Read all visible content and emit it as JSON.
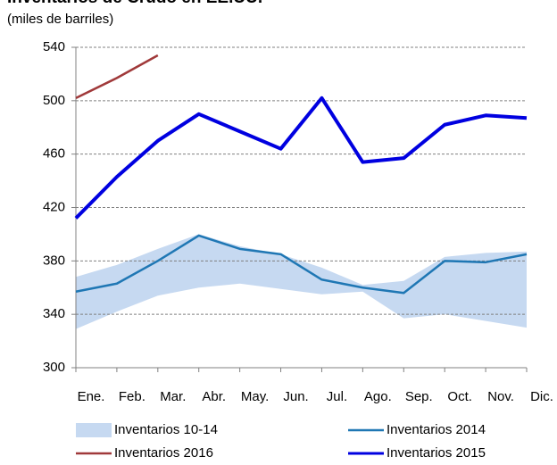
{
  "chart_data": {
    "type": "line",
    "title": "Inventarios de Crudo en EE.UU.",
    "subtitle": "(miles de barriles)",
    "categories": [
      "Ene.",
      "Feb.",
      "Mar.",
      "Abr.",
      "May.",
      "Jun.",
      "Jul.",
      "Ago.",
      "Sep.",
      "Oct.",
      "Nov.",
      "Dic."
    ],
    "ylim": [
      300,
      540
    ],
    "yticks": [
      300,
      340,
      380,
      420,
      460,
      500,
      540
    ],
    "grid": true,
    "series": [
      {
        "name": "Inventarios 10-14",
        "type": "band",
        "color": "#c6d9f1",
        "values": [
          368,
          377,
          389,
          400,
          391,
          385,
          375,
          362,
          365,
          383,
          386,
          387
        ],
        "lower": [
          329,
          342,
          354,
          360,
          363,
          359,
          355,
          357,
          337,
          340,
          335,
          330
        ]
      },
      {
        "name": "Inventarios 2014",
        "type": "line",
        "color": "#1f77b4",
        "values": [
          357,
          363,
          380,
          399,
          389,
          385,
          366,
          360,
          356,
          380,
          379,
          385
        ]
      },
      {
        "name": "Inventarios 2016",
        "type": "line",
        "color": "#a0393a",
        "values": [
          502,
          517,
          534,
          null,
          null,
          null,
          null,
          null,
          null,
          null,
          null,
          null
        ]
      },
      {
        "name": "Inventarios 2015",
        "type": "line",
        "color": "#0000e0",
        "values": [
          412,
          443,
          470,
          490,
          477,
          464,
          502,
          454,
          457,
          482,
          489,
          487
        ]
      }
    ]
  }
}
